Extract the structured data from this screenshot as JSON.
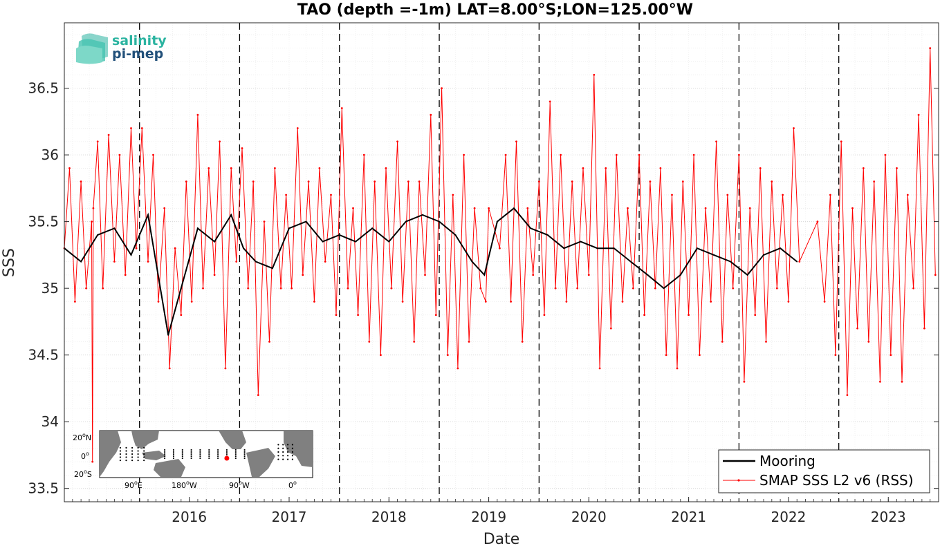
{
  "chart_data": {
    "type": "line",
    "title": "TAO (depth =-1m) LAT=8.00°S;LON=125.00°W",
    "xlabel": "Date",
    "ylabel": "SSS",
    "xlim": [
      "2015-04-01",
      "2024-01-01"
    ],
    "ylim": [
      33.4,
      36.99
    ],
    "x_ticks": [
      "2016",
      "2017",
      "2018",
      "2019",
      "2020",
      "2021",
      "2022",
      "2023"
    ],
    "y_ticks": [
      33.5,
      34,
      34.5,
      35,
      35.5,
      36,
      36.5
    ],
    "y_tick_labels": [
      "33.5",
      "34",
      "34.5",
      "35",
      "35.5",
      "36",
      "36.5"
    ],
    "year_markers": [
      "2016-01-01",
      "2017-01-01",
      "2018-01-01",
      "2019-01-01",
      "2020-01-01",
      "2021-01-01",
      "2022-01-01",
      "2023-01-01"
    ],
    "grid": true,
    "legend_position": "bottom-right",
    "series": [
      {
        "name": "Mooring",
        "color": "#000000",
        "x": [
          "2015-04-01",
          "2015-06-01",
          "2015-08-01",
          "2015-10-01",
          "2015-12-01",
          "2016-02-01",
          "2016-04-15",
          "2016-06-01",
          "2016-08-01",
          "2016-10-01",
          "2016-12-01",
          "2017-01-15",
          "2017-03-01",
          "2017-05-01",
          "2017-07-01",
          "2017-09-01",
          "2017-11-01",
          "2018-01-01",
          "2018-03-01",
          "2018-05-01",
          "2018-07-01",
          "2018-09-01",
          "2018-11-01",
          "2019-01-01",
          "2019-03-01",
          "2019-05-01",
          "2019-06-15",
          "2019-08-01",
          "2019-10-01",
          "2019-12-01",
          "2020-02-01",
          "2020-04-01",
          "2020-06-01",
          "2020-08-01",
          "2020-10-01",
          "2020-12-01",
          "2021-02-01",
          "2021-04-01",
          "2021-06-01",
          "2021-08-01",
          "2021-10-01",
          "2021-12-01",
          "2022-02-01",
          "2022-04-01",
          "2022-06-01",
          "2022-08-01"
        ],
        "y": [
          35.3,
          35.2,
          35.4,
          35.45,
          35.25,
          35.55,
          34.65,
          35.0,
          35.45,
          35.35,
          35.55,
          35.3,
          35.2,
          35.15,
          35.45,
          35.5,
          35.35,
          35.4,
          35.35,
          35.45,
          35.35,
          35.5,
          35.55,
          35.5,
          35.4,
          35.2,
          35.1,
          35.5,
          35.6,
          35.45,
          35.4,
          35.3,
          35.35,
          35.3,
          35.3,
          35.2,
          35.1,
          35.0,
          35.1,
          35.3,
          35.25,
          35.2,
          35.1,
          35.25,
          35.3,
          35.2
        ]
      },
      {
        "name": "SMAP SSS L2 v6 (RSS)",
        "color": "#ff0000",
        "x": [
          "2015-04-01",
          "2015-04-20",
          "2015-05-10",
          "2015-06-01",
          "2015-06-20",
          "2015-07-10",
          "2015-07-13",
          "2015-07-16",
          "2015-08-01",
          "2015-08-20",
          "2015-09-10",
          "2015-10-01",
          "2015-10-20",
          "2015-11-10",
          "2015-12-01",
          "2015-12-20",
          "2016-01-10",
          "2016-02-01",
          "2016-02-20",
          "2016-03-10",
          "2016-04-01",
          "2016-04-20",
          "2016-05-10",
          "2016-06-01",
          "2016-06-20",
          "2016-07-10",
          "2016-08-01",
          "2016-08-20",
          "2016-09-10",
          "2016-10-01",
          "2016-10-20",
          "2016-11-10",
          "2016-12-01",
          "2016-12-20",
          "2017-01-10",
          "2017-02-01",
          "2017-02-20",
          "2017-03-10",
          "2017-04-01",
          "2017-04-20",
          "2017-05-10",
          "2017-06-01",
          "2017-06-20",
          "2017-07-10",
          "2017-08-01",
          "2017-08-20",
          "2017-09-10",
          "2017-10-01",
          "2017-10-20",
          "2017-11-10",
          "2017-12-01",
          "2017-12-20",
          "2018-01-10",
          "2018-02-01",
          "2018-02-20",
          "2018-03-10",
          "2018-04-01",
          "2018-04-20",
          "2018-05-10",
          "2018-06-01",
          "2018-06-20",
          "2018-07-10",
          "2018-08-01",
          "2018-08-20",
          "2018-09-10",
          "2018-10-01",
          "2018-10-20",
          "2018-11-10",
          "2018-12-01",
          "2018-12-20",
          "2019-01-10",
          "2019-02-01",
          "2019-02-20",
          "2019-03-10",
          "2019-04-01",
          "2019-04-20",
          "2019-05-10",
          "2019-06-01",
          "2019-06-20",
          "2019-07-01",
          "2019-08-10",
          "2019-09-01",
          "2019-09-20",
          "2019-10-10",
          "2019-11-01",
          "2019-11-20",
          "2019-12-10",
          "2020-01-01",
          "2020-01-20",
          "2020-02-10",
          "2020-03-01",
          "2020-03-20",
          "2020-04-10",
          "2020-05-01",
          "2020-05-20",
          "2020-06-10",
          "2020-07-01",
          "2020-07-20",
          "2020-08-10",
          "2020-09-01",
          "2020-09-20",
          "2020-10-10",
          "2020-11-01",
          "2020-11-20",
          "2020-12-10",
          "2021-01-01",
          "2021-01-20",
          "2021-02-10",
          "2021-03-01",
          "2021-03-20",
          "2021-04-10",
          "2021-05-01",
          "2021-05-20",
          "2021-06-10",
          "2021-07-01",
          "2021-07-20",
          "2021-08-10",
          "2021-09-01",
          "2021-09-20",
          "2021-10-10",
          "2021-11-01",
          "2021-11-20",
          "2021-12-10",
          "2022-01-01",
          "2022-01-20",
          "2022-02-10",
          "2022-03-01",
          "2022-03-20",
          "2022-04-10",
          "2022-05-01",
          "2022-05-20",
          "2022-06-10",
          "2022-07-01",
          "2022-07-20",
          "2022-08-10",
          "2022-10-15",
          "2022-11-10",
          "2022-12-01",
          "2022-12-20",
          "2023-01-10",
          "2023-02-01",
          "2023-02-20",
          "2023-03-10",
          "2023-04-01",
          "2023-04-20",
          "2023-05-10",
          "2023-06-01",
          "2023-06-20",
          "2023-07-10",
          "2023-08-01",
          "2023-08-20",
          "2023-09-10",
          "2023-10-01",
          "2023-10-20",
          "2023-11-10",
          "2023-12-01",
          "2023-12-20"
        ],
        "y": [
          35.3,
          35.9,
          34.9,
          35.8,
          35.0,
          35.5,
          33.7,
          35.6,
          36.1,
          35.0,
          36.15,
          35.2,
          36.0,
          35.1,
          36.2,
          35.3,
          36.2,
          35.2,
          36.0,
          34.9,
          35.6,
          34.4,
          35.3,
          34.8,
          35.8,
          34.9,
          36.3,
          35.0,
          35.9,
          35.1,
          36.1,
          34.4,
          35.9,
          35.2,
          36.05,
          35.0,
          35.8,
          34.2,
          35.5,
          34.6,
          35.9,
          35.0,
          35.7,
          35.0,
          36.2,
          35.1,
          35.8,
          34.9,
          35.9,
          35.2,
          35.7,
          34.8,
          36.35,
          35.0,
          35.6,
          34.8,
          36.0,
          34.6,
          35.8,
          34.5,
          35.9,
          35.0,
          36.1,
          34.9,
          35.8,
          34.6,
          35.8,
          35.1,
          36.3,
          34.8,
          36.5,
          34.5,
          35.7,
          34.4,
          36.0,
          34.6,
          35.6,
          35.0,
          34.9,
          35.6,
          35.3,
          36.0,
          34.9,
          36.1,
          34.6,
          35.6,
          35.1,
          35.8,
          34.8,
          36.4,
          35.0,
          36.0,
          34.9,
          35.8,
          35.0,
          35.9,
          35.1,
          36.6,
          34.4,
          35.9,
          34.7,
          36.0,
          34.9,
          35.6,
          35.0,
          36.0,
          34.8,
          35.8,
          35.0,
          35.9,
          34.5,
          35.7,
          34.4,
          35.8,
          34.8,
          36.0,
          34.5,
          35.6,
          34.9,
          36.1,
          34.6,
          35.7,
          35.0,
          36.0,
          34.3,
          35.6,
          34.8,
          35.9,
          34.6,
          35.8,
          35.0,
          35.7,
          34.9,
          36.2,
          35.2,
          35.5,
          34.9,
          35.7,
          34.5,
          36.1,
          34.2,
          35.6,
          34.7,
          35.9,
          34.6,
          35.8,
          34.3,
          36.0,
          34.5,
          35.9,
          34.3,
          35.7,
          35.0,
          36.3,
          34.7,
          36.8,
          35.1
        ]
      }
    ]
  },
  "logo": {
    "line1": "salinity",
    "line2": "pi-mep",
    "color1": "#2ab3a0",
    "color2": "#22507a"
  },
  "inset_map": {
    "lat_labels": [
      "20",
      "0",
      "20"
    ],
    "lat_hemis": [
      "N",
      "",
      "S"
    ],
    "lon_labels": [
      "90",
      "180",
      "90",
      "0"
    ],
    "lon_hemis": [
      "E",
      "W",
      "W",
      ""
    ],
    "degree_symbol": "o",
    "marker": {
      "lat": -8.0,
      "lon": -125.0,
      "color": "#ff0000"
    },
    "land_color": "#808080",
    "ocean_color": "#ffffff"
  }
}
